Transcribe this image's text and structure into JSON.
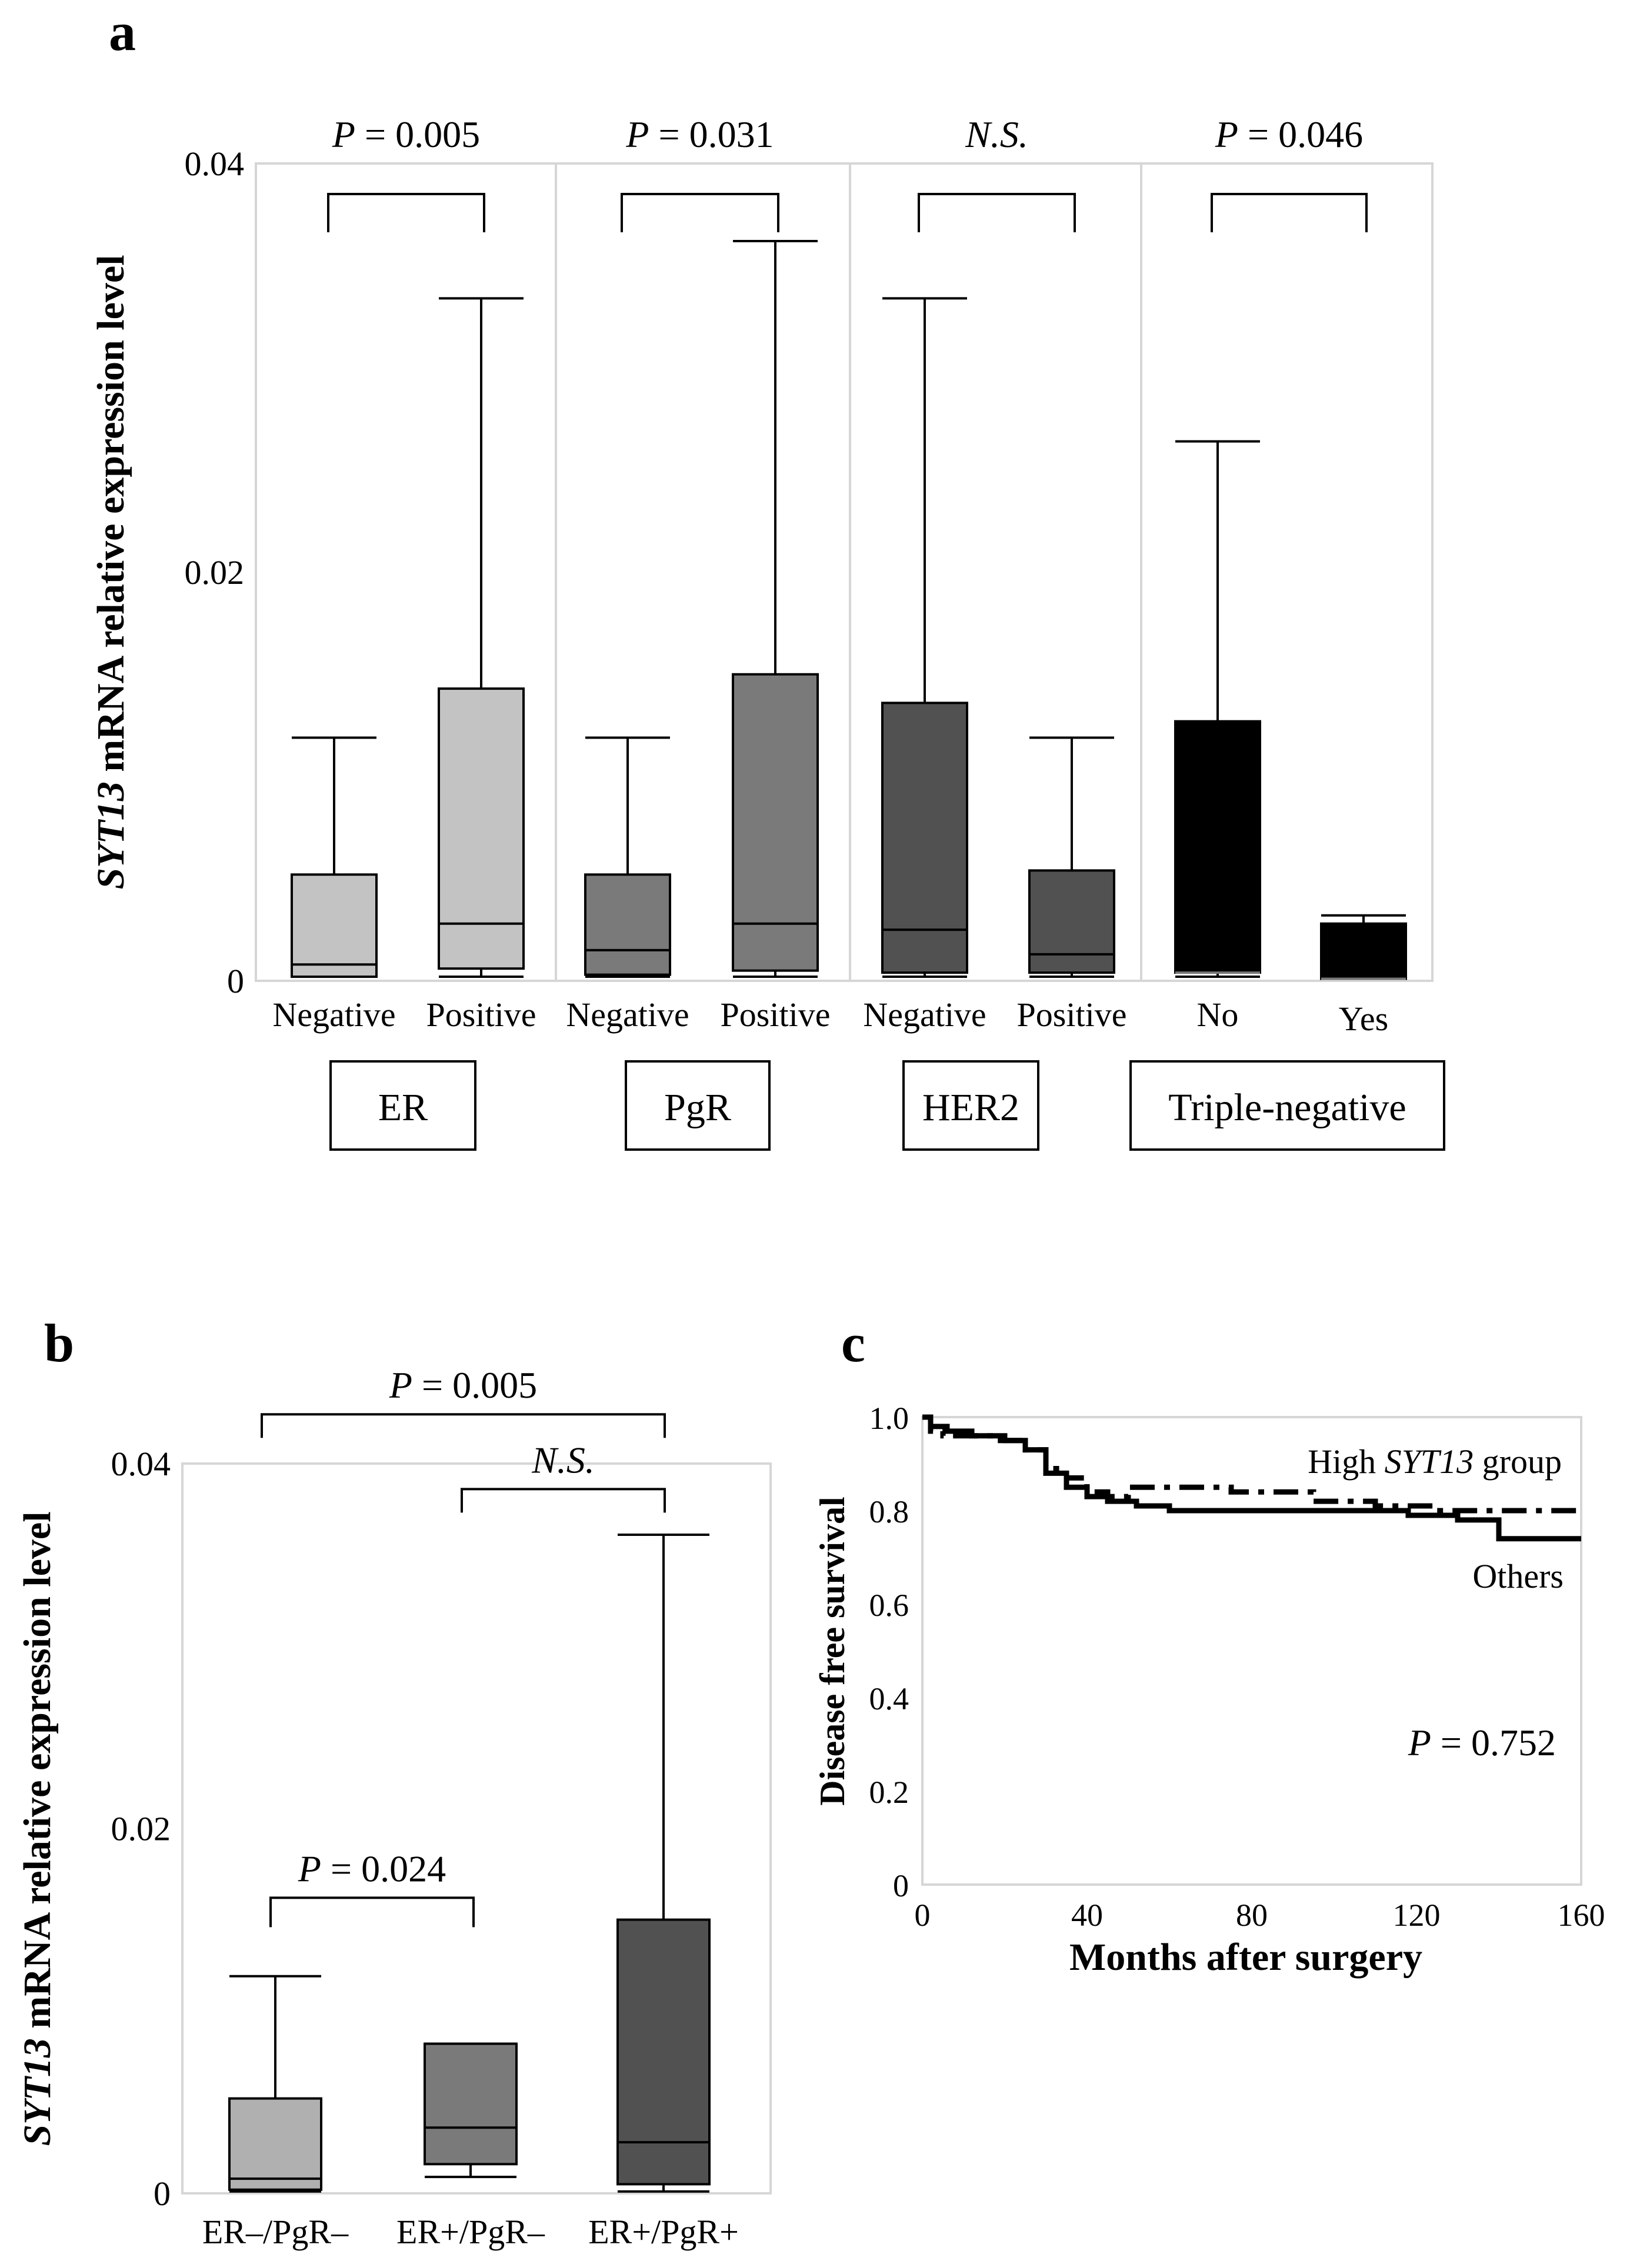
{
  "panels": {
    "a": "a",
    "b": "b",
    "c": "c"
  },
  "colors": {
    "er": "#c3c3c3",
    "pgr": "#7a7a7a",
    "her2": "#515151",
    "tn": "#000000",
    "b1": "#b0b0b0",
    "b2": "#7a7a7a",
    "b3": "#515151"
  },
  "chart_data": [
    {
      "panel": "a",
      "type": "box",
      "ylabel_italic": "SYT13",
      "ylabel_rest": " mRNA relative expression level",
      "ylim": [
        0,
        0.04
      ],
      "yticks": [
        "0.04",
        "0.02",
        "0"
      ],
      "ytick_values": [
        0.04,
        0.02,
        0
      ],
      "groups": [
        {
          "name": "ER",
          "color_key": "er",
          "categories": [
            "Negative",
            "Positive"
          ],
          "boxes": [
            {
              "min": 0.0002,
              "q1": 0.0002,
              "median": 0.0008,
              "q3": 0.0052,
              "max": 0.0119
            },
            {
              "min": 0.0002,
              "q1": 0.0006,
              "median": 0.0028,
              "q3": 0.0143,
              "max": 0.0334
            }
          ],
          "sig_italic": "P",
          "sig_rest": " = 0.005"
        },
        {
          "name": "PgR",
          "color_key": "pgr",
          "categories": [
            "Negative",
            "Positive"
          ],
          "boxes": [
            {
              "min": 0.0002,
              "q1": 0.0003,
              "median": 0.0015,
              "q3": 0.0052,
              "max": 0.0119
            },
            {
              "min": 0.0002,
              "q1": 0.0005,
              "median": 0.0028,
              "q3": 0.015,
              "max": 0.0362
            }
          ],
          "sig_italic": "P",
          "sig_rest": " = 0.031"
        },
        {
          "name": "HER2",
          "color_key": "her2",
          "categories": [
            "Negative",
            "Positive"
          ],
          "boxes": [
            {
              "min": 0.0002,
              "q1": 0.0004,
              "median": 0.0025,
              "q3": 0.0136,
              "max": 0.0334
            },
            {
              "min": 0.0002,
              "q1": 0.0004,
              "median": 0.0013,
              "q3": 0.0054,
              "max": 0.0119
            }
          ],
          "sig_italic": "N.S.",
          "sig_rest": ""
        },
        {
          "name": "Triple-negative",
          "color_key": "tn",
          "categories": [
            "No",
            "Yes"
          ],
          "boxes": [
            {
              "min": 0.0002,
              "q1": 0.0004,
              "median": 0.0004,
              "q3": 0.0127,
              "max": 0.0264
            },
            {
              "min": 0.0001,
              "q1": 0.0001,
              "median": 0.0001,
              "q3": 0.0028,
              "max": 0.0032
            }
          ],
          "sig_italic": "P",
          "sig_rest": " = 0.046"
        }
      ]
    },
    {
      "panel": "b",
      "type": "box",
      "ylabel_italic": "SYT13",
      "ylabel_rest": " mRNA relative expression level",
      "ylim": [
        0,
        0.04
      ],
      "yticks": [
        "0.04",
        "0.02",
        "0"
      ],
      "ytick_values": [
        0.04,
        0.02,
        0
      ],
      "categories": [
        "ER–/PgR–",
        "ER+/PgR–",
        "ER+/PgR+"
      ],
      "color_keys": [
        "b1",
        "b2",
        "b3"
      ],
      "boxes": [
        {
          "min": 0.0001,
          "q1": 0.0002,
          "median": 0.0008,
          "q3": 0.0052,
          "max": 0.0119
        },
        {
          "min": 0.0009,
          "q1": 0.0016,
          "median": 0.0036,
          "q3": 0.0082,
          "max": 0.0082
        },
        {
          "min": 0.0001,
          "q1": 0.0005,
          "median": 0.0028,
          "q3": 0.015,
          "max": 0.0361
        }
      ],
      "comparisons": [
        {
          "from": 0,
          "to": 2,
          "bracket_y": 0.0427,
          "sig_italic": "P",
          "sig_rest": " = 0.005"
        },
        {
          "from": 1,
          "to": 2,
          "bracket_y": 0.0386,
          "sig_italic": "N.S.",
          "sig_rest": ""
        },
        {
          "from": 0,
          "to": 1,
          "bracket_y": 0.0162,
          "sig_italic": "P",
          "sig_rest": " = 0.024"
        }
      ]
    },
    {
      "panel": "c",
      "type": "line",
      "title": "",
      "xlabel": "Months after surgery",
      "ylabel": "Disease free survival",
      "xlim": [
        0,
        160
      ],
      "ylim": [
        0,
        1.0
      ],
      "xticks": [
        "0",
        "40",
        "80",
        "120",
        "160"
      ],
      "xtick_values": [
        0,
        40,
        80,
        120,
        160
      ],
      "yticks": [
        "1.0",
        "0.8",
        "0.6",
        "0.4",
        "0.2",
        "0"
      ],
      "ytick_values": [
        1.0,
        0.8,
        0.6,
        0.4,
        0.2,
        0
      ],
      "p_italic": "P",
      "p_rest": " = 0.752",
      "series": [
        {
          "name": "High SYT13 group",
          "label_pre": "High ",
          "label_italic": "SYT13",
          "label_post": " group",
          "style": "dashed",
          "x": [
            0,
            2,
            5,
            10,
            18,
            25,
            30,
            35,
            40,
            45,
            50,
            60,
            75,
            95,
            110,
            125,
            145,
            160
          ],
          "y": [
            1.0,
            0.97,
            0.96,
            0.96,
            0.95,
            0.93,
            0.89,
            0.87,
            0.84,
            0.83,
            0.85,
            0.85,
            0.84,
            0.82,
            0.81,
            0.8,
            0.8,
            0.8
          ]
        },
        {
          "name": "Others",
          "label_pre": "Others",
          "label_italic": "",
          "label_post": "",
          "style": "solid",
          "x": [
            0,
            2,
            6,
            12,
            20,
            25,
            30,
            35,
            40,
            45,
            52,
            60,
            80,
            100,
            118,
            130,
            140,
            160
          ],
          "y": [
            1.0,
            0.98,
            0.97,
            0.96,
            0.95,
            0.93,
            0.88,
            0.85,
            0.83,
            0.82,
            0.81,
            0.8,
            0.8,
            0.8,
            0.79,
            0.78,
            0.74,
            0.74
          ]
        }
      ]
    }
  ]
}
